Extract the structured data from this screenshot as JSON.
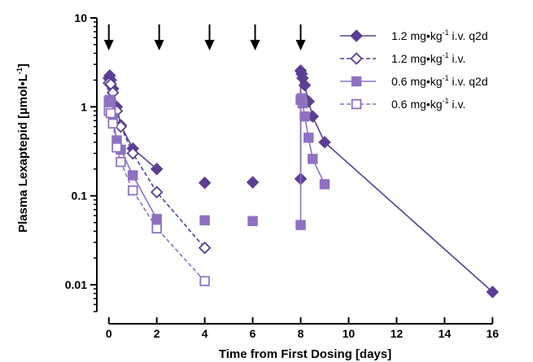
{
  "chart_data": {
    "type": "scatter",
    "title": "",
    "xlabel": "Time from First Dosing [days]",
    "ylabel": "Plasma Lexaptepid [µmol•L",
    "ylabel_sup": "-1",
    "ylabel_end": "]",
    "yscale": "log",
    "xlim": [
      -0.5,
      16.5
    ],
    "ylim": [
      0.005,
      10
    ],
    "x_ticks": [
      0,
      2,
      4,
      6,
      8,
      10,
      12,
      14,
      16
    ],
    "x_tick_labels": [
      "0",
      "2",
      "4",
      "6",
      "8",
      "10",
      "12",
      "14",
      "16"
    ],
    "y_ticks": [
      0.01,
      0.1,
      1,
      10
    ],
    "y_tick_labels": [
      "0.01",
      "0.1",
      "1",
      "10"
    ],
    "dosing_arrows_x": [
      0,
      2.1,
      4.2,
      6.1,
      8
    ],
    "legend_position": "top-right",
    "colors": {
      "dark": "#5b3f91",
      "light": "#8e72c0"
    },
    "series": [
      {
        "name": "1.2 mg•kg",
        "name_sup": "-1",
        "name_suffix": " i.v. q2d",
        "marker": "diamond-filled",
        "line": "solid",
        "color": "dark",
        "lines": [
          [
            [
              0,
              2.1
            ],
            [
              0.04,
              2.25
            ],
            [
              0.08,
              2.0
            ],
            [
              0.17,
              1.6
            ],
            [
              0.33,
              1.0
            ],
            [
              0.5,
              0.62
            ],
            [
              1,
              0.34
            ],
            [
              2,
              0.2
            ]
          ],
          [
            [
              8,
              0.155
            ],
            [
              8,
              2.55
            ],
            [
              8.04,
              2.35
            ],
            [
              8.08,
              2.1
            ],
            [
              8.17,
              1.75
            ],
            [
              8.33,
              1.15
            ],
            [
              8.5,
              0.78
            ],
            [
              9,
              0.4
            ],
            [
              16,
              0.0083
            ]
          ]
        ],
        "points": [
          [
            0,
            2.1
          ],
          [
            0.04,
            2.25
          ],
          [
            0.08,
            2.0
          ],
          [
            0.17,
            1.6
          ],
          [
            0.33,
            1.0
          ],
          [
            0.5,
            0.62
          ],
          [
            1,
            0.34
          ],
          [
            2,
            0.2
          ],
          [
            4,
            0.14
          ],
          [
            6,
            0.142
          ],
          [
            8,
            0.155
          ],
          [
            8,
            2.55
          ],
          [
            8.04,
            2.35
          ],
          [
            8.08,
            2.1
          ],
          [
            8.17,
            1.75
          ],
          [
            8.33,
            1.15
          ],
          [
            8.5,
            0.78
          ],
          [
            9,
            0.4
          ],
          [
            16,
            0.0083
          ]
        ]
      },
      {
        "name": "1.2 mg•kg",
        "name_sup": "-1",
        "name_suffix": " i.v.",
        "marker": "diamond-open",
        "line": "dashed",
        "color": "dark",
        "lines": [
          [
            [
              0,
              1.85
            ],
            [
              0.08,
              1.8
            ],
            [
              0.17,
              1.45
            ],
            [
              0.33,
              0.9
            ],
            [
              0.5,
              0.6
            ],
            [
              1,
              0.3
            ],
            [
              2,
              0.11
            ],
            [
              4,
              0.026
            ]
          ]
        ],
        "points": [
          [
            0,
            1.85
          ],
          [
            0.08,
            1.8
          ],
          [
            0.17,
            1.45
          ],
          [
            0.33,
            0.9
          ],
          [
            0.5,
            0.6
          ],
          [
            1,
            0.3
          ],
          [
            2,
            0.11
          ],
          [
            4,
            0.026
          ]
        ]
      },
      {
        "name": "0.6 mg•kg",
        "name_sup": "-1",
        "name_suffix": " i.v. q2d",
        "marker": "square-filled",
        "line": "solid",
        "color": "light",
        "lines": [
          [
            [
              0,
              1.15
            ],
            [
              0.04,
              1.2
            ],
            [
              0.08,
              1.05
            ],
            [
              0.17,
              0.75
            ],
            [
              0.33,
              0.42
            ],
            [
              0.5,
              0.33
            ],
            [
              1,
              0.17
            ],
            [
              2,
              0.055
            ]
          ],
          [
            [
              8,
              0.047
            ],
            [
              8,
              1.2
            ],
            [
              8.04,
              1.25
            ],
            [
              8.08,
              1.1
            ],
            [
              8.17,
              0.78
            ],
            [
              8.33,
              0.45
            ],
            [
              8.5,
              0.26
            ],
            [
              9,
              0.135
            ]
          ]
        ],
        "points": [
          [
            0,
            1.15
          ],
          [
            0.04,
            1.2
          ],
          [
            0.08,
            1.05
          ],
          [
            0.17,
            0.75
          ],
          [
            0.33,
            0.42
          ],
          [
            0.5,
            0.33
          ],
          [
            1,
            0.17
          ],
          [
            2,
            0.055
          ],
          [
            4,
            0.053
          ],
          [
            6,
            0.052
          ],
          [
            8,
            0.047
          ],
          [
            8,
            1.2
          ],
          [
            8.04,
            1.25
          ],
          [
            8.08,
            1.1
          ],
          [
            8.17,
            0.78
          ],
          [
            8.33,
            0.45
          ],
          [
            8.5,
            0.26
          ],
          [
            9,
            0.135
          ]
        ]
      },
      {
        "name": "0.6 mg•kg",
        "name_sup": "-1",
        "name_suffix": " i.v.",
        "marker": "square-open",
        "line": "dashed",
        "color": "light",
        "lines": [
          [
            [
              0,
              0.9
            ],
            [
              0.08,
              0.85
            ],
            [
              0.17,
              0.65
            ],
            [
              0.33,
              0.35
            ],
            [
              0.5,
              0.24
            ],
            [
              1,
              0.115
            ],
            [
              2,
              0.043
            ],
            [
              4,
              0.011
            ]
          ]
        ],
        "points": [
          [
            0,
            0.9
          ],
          [
            0.08,
            0.85
          ],
          [
            0.17,
            0.65
          ],
          [
            0.33,
            0.35
          ],
          [
            0.5,
            0.24
          ],
          [
            1,
            0.115
          ],
          [
            2,
            0.043
          ],
          [
            4,
            0.011
          ]
        ]
      }
    ]
  }
}
